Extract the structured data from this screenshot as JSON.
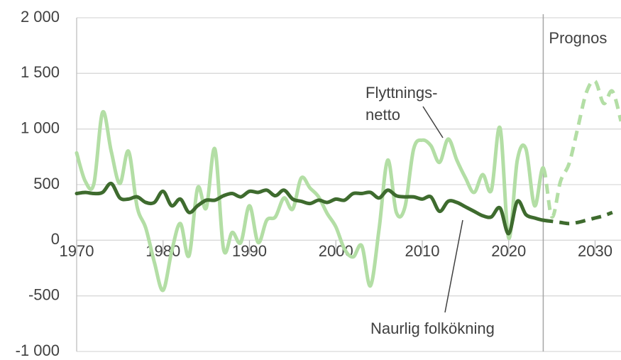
{
  "chart_data": {
    "type": "line",
    "xlim": [
      1970,
      2033
    ],
    "xticks": [
      1970,
      1980,
      1990,
      2000,
      2010,
      2020,
      2030
    ],
    "ylim": [
      -1000,
      2000
    ],
    "yticks": [
      {
        "value": -1000,
        "label": "-1 000"
      },
      -500,
      0,
      500,
      {
        "value": 1000,
        "label": "1 000"
      },
      {
        "value": 1500,
        "label": "1 500"
      },
      {
        "value": 2000,
        "label": "2 000"
      }
    ],
    "grid": true,
    "forecast_from": 2024,
    "forecast_label": "Prognos",
    "x": [
      1970,
      1971,
      1972,
      1973,
      1974,
      1975,
      1976,
      1977,
      1978,
      1979,
      1980,
      1981,
      1982,
      1983,
      1984,
      1985,
      1986,
      1987,
      1988,
      1989,
      1990,
      1991,
      1992,
      1993,
      1994,
      1995,
      1996,
      1997,
      1998,
      1999,
      2000,
      2001,
      2002,
      2003,
      2004,
      2005,
      2006,
      2007,
      2008,
      2009,
      2010,
      2011,
      2012,
      2013,
      2014,
      2015,
      2016,
      2017,
      2018,
      2019,
      2020,
      2021,
      2022,
      2023,
      2024,
      2025,
      2026,
      2027,
      2028,
      2029,
      2030,
      2031,
      2032,
      2033
    ],
    "series": [
      {
        "label": [
          "Flyttnings-",
          "netto"
        ],
        "color": "#b3dea5",
        "values": [
          785,
          530,
          510,
          1150,
          800,
          510,
          800,
          300,
          110,
          -200,
          -450,
          -100,
          150,
          -140,
          470,
          290,
          820,
          -80,
          70,
          -20,
          310,
          -20,
          180,
          210,
          380,
          280,
          560,
          470,
          390,
          240,
          120,
          -80,
          -150,
          -50,
          -410,
          100,
          720,
          250,
          300,
          820,
          900,
          850,
          700,
          910,
          720,
          560,
          430,
          590,
          450,
          1010,
          20,
          720,
          820,
          310,
          650,
          210,
          530,
          690,
          1010,
          1330,
          1430,
          1230,
          1340,
          1070
        ]
      },
      {
        "label": [
          "Naurlig folkökning"
        ],
        "color": "#3e6b2e",
        "values": [
          420,
          430,
          420,
          430,
          510,
          380,
          370,
          390,
          340,
          340,
          440,
          310,
          370,
          250,
          310,
          360,
          360,
          400,
          420,
          390,
          440,
          430,
          450,
          400,
          450,
          370,
          350,
          330,
          360,
          340,
          370,
          360,
          420,
          420,
          430,
          380,
          450,
          400,
          390,
          390,
          370,
          390,
          260,
          350,
          340,
          300,
          260,
          220,
          210,
          290,
          60,
          350,
          230,
          200,
          180,
          170,
          160,
          150,
          160,
          180,
          200,
          220,
          250,
          null
        ]
      }
    ]
  }
}
